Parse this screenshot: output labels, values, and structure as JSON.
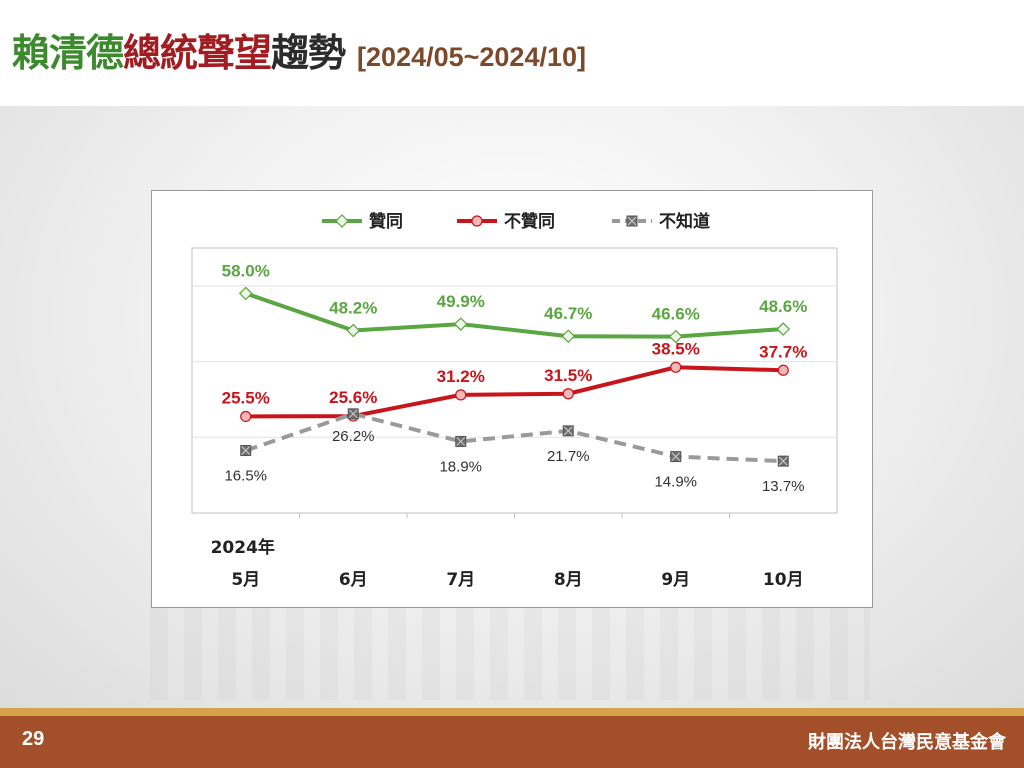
{
  "title": {
    "segments": [
      {
        "text": "賴清德",
        "color": "#3c8a2e"
      },
      {
        "text": "總統聲望",
        "color": "#a11d22"
      },
      {
        "text": "趨勢",
        "color": "#2b2b2b"
      }
    ],
    "range": "[2024/05~2024/10]"
  },
  "footer": {
    "page_number": "29",
    "organization": "財團法人台灣民意基金會"
  },
  "chart_data": {
    "type": "line",
    "year_label": "2024年",
    "categories": [
      "5月",
      "6月",
      "7月",
      "8月",
      "9月",
      "10月"
    ],
    "ylim": [
      0,
      70
    ],
    "grid": true,
    "legend_position": "top",
    "series": [
      {
        "name": "贊同",
        "values": [
          58.0,
          48.2,
          49.9,
          46.7,
          46.6,
          48.6
        ],
        "labels": [
          "58.0%",
          "48.2%",
          "49.9%",
          "46.7%",
          "46.6%",
          "48.6%"
        ],
        "color": "#5aa642",
        "marker": "diamond",
        "style": "solid"
      },
      {
        "name": "不贊同",
        "values": [
          25.5,
          25.6,
          31.2,
          31.5,
          38.5,
          37.7
        ],
        "labels": [
          "25.5%",
          "25.6%",
          "31.2%",
          "31.5%",
          "38.5%",
          "37.7%"
        ],
        "color": "#c8151b",
        "marker": "circle",
        "style": "solid"
      },
      {
        "name": "不知道",
        "values": [
          16.5,
          26.2,
          18.9,
          21.7,
          14.9,
          13.7
        ],
        "labels": [
          "16.5%",
          "26.2%",
          "18.9%",
          "21.7%",
          "14.9%",
          "13.7%"
        ],
        "color": "#9a9a9a",
        "marker": "square-x",
        "style": "dashed"
      }
    ]
  }
}
